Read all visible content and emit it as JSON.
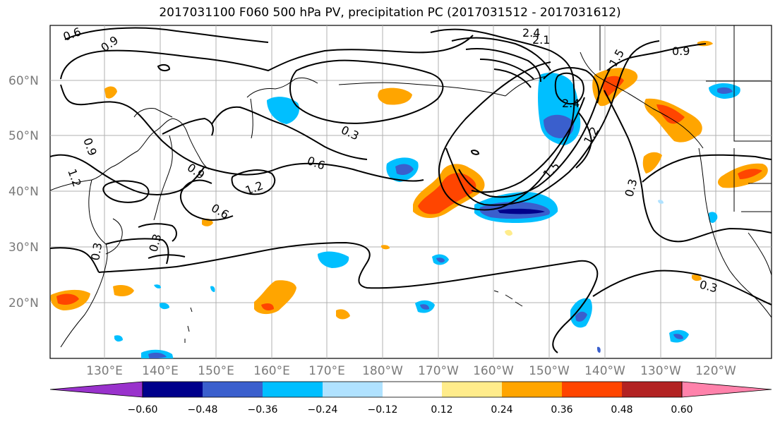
{
  "title": "2017031100 F060 500 hPa PV, precipitation PC (2017031512 - 2017031612)",
  "axes": {
    "lat_labels": [
      "60°N",
      "50°N",
      "40°N",
      "30°N",
      "20°N"
    ],
    "lon_labels": [
      "130°E",
      "140°E",
      "150°E",
      "160°E",
      "170°E",
      "180°W",
      "170°W",
      "160°W",
      "150°W",
      "140°W",
      "130°W",
      "120°W"
    ]
  },
  "contour_labels": [
    "0.6",
    "0.9",
    "2.4",
    "2.1",
    "1.5",
    "0.9",
    "2.4",
    "0.3",
    "0.6",
    "1.2",
    "0.9",
    "1.2",
    "0.6",
    "1.5",
    "1.2",
    "0.9",
    "0.3",
    "0.3",
    "0.3",
    "0.3",
    "1.2"
  ],
  "colorbar": {
    "ticks": [
      "−0.60",
      "−0.48",
      "−0.36",
      "−0.24",
      "−0.12",
      "0.12",
      "0.24",
      "0.36",
      "0.48",
      "0.60"
    ],
    "colors": [
      "#9932cc",
      "#00008b",
      "#3a5fcd",
      "#00bfff",
      "#b0e2ff",
      "#ffffff",
      "#ffec8b",
      "#ffa500",
      "#ff4500",
      "#b22222",
      "#ff82ab"
    ]
  }
}
